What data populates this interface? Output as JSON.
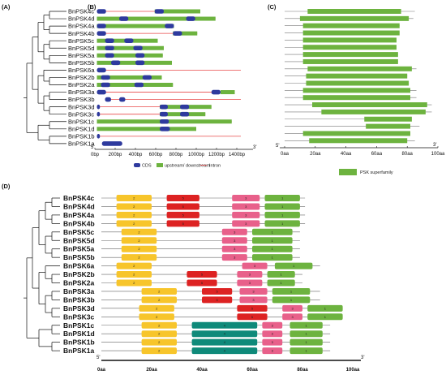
{
  "panels": {
    "a": "(A)",
    "b": "(B)",
    "c": "(C)",
    "d": "(D)"
  },
  "genes": [
    "BnPSK4c",
    "BnPSK4d",
    "BnPSK4a",
    "BnPSK4b",
    "BnPSK5c",
    "BnPSK5d",
    "BnPSK5a",
    "BnPSK5b",
    "BnPSK6a",
    "BnPSK2b",
    "BnPSK2a",
    "BnPSK3a",
    "BnPSK3b",
    "BnPSK3d",
    "BnPSK3c",
    "BnPSK1c",
    "BnPSK1d",
    "BnPSK1b",
    "BnPSK1a"
  ],
  "genes_d": [
    "BnPSK4c",
    "BnPSK4d",
    "BnPSK4a",
    "BnPSK4b",
    "BnPSK5c",
    "BnPSK5d",
    "BnPSK5a",
    "BnPSK5b",
    "BnPSK6a",
    "BnPSK2b",
    "BnPSK2a",
    "BnPSK3a",
    "BnPSK3b",
    "BnPSK3d",
    "BnPSK3c",
    "BnPSK1c",
    "BnPSK1d",
    "BnPSK1b",
    "BnPSK1a"
  ],
  "colors": {
    "cds": "#2e3a9e",
    "utr": "#6db33f",
    "intron": "#e84a4a",
    "psk": "#6db33f",
    "m1": "#6db33f",
    "m2": "#f7c52b",
    "m3": "#e8608a",
    "m4": "#0f8a7a",
    "m5": "#dd2222"
  },
  "panelB": {
    "axis_max_bp": 1400,
    "ticks": [
      0,
      200,
      400,
      600,
      800,
      1000,
      1200,
      1400
    ],
    "tick_labels": [
      "0bp",
      "200bp",
      "400bp",
      "600bp",
      "800bp",
      "1000bp",
      "1200bp",
      "1400bp"
    ],
    "end5": "5'",
    "end3": "3'",
    "legend": {
      "cds": "CDS",
      "utr": "upstream/ downstream",
      "intron": "Intron"
    },
    "structures": [
      {
        "utr": [
          [
            590,
            1040
          ]
        ],
        "cds": [
          [
            20,
            110
          ],
          [
            590,
            680
          ]
        ],
        "intron_to": 590
      },
      {
        "utr": [
          [
            20,
            1190
          ]
        ],
        "cds": [
          [
            240,
            330
          ],
          [
            900,
            990
          ]
        ],
        "intron_to": 0
      },
      {
        "utr": [
          [
            20,
            780
          ]
        ],
        "cds": [
          [
            20,
            110
          ],
          [
            690,
            780
          ]
        ],
        "intron_to": 690
      },
      {
        "utr": [
          [
            770,
            1010
          ]
        ],
        "cds": [
          [
            20,
            110
          ],
          [
            770,
            860
          ]
        ],
        "intron_to": 770
      },
      {
        "utr": [
          [
            20,
            620
          ]
        ],
        "cds": [
          [
            100,
            190
          ],
          [
            290,
            380
          ]
        ],
        "intron_to": 0
      },
      {
        "utr": [
          [
            20,
            680
          ]
        ],
        "cds": [
          [
            100,
            190
          ],
          [
            380,
            470
          ]
        ],
        "intron_to": 0
      },
      {
        "utr": [
          [
            20,
            670
          ]
        ],
        "cds": [
          [
            100,
            190
          ],
          [
            400,
            490
          ]
        ],
        "intron_to": 0
      },
      {
        "utr": [
          [
            20,
            760
          ]
        ],
        "cds": [
          [
            160,
            250
          ],
          [
            400,
            490
          ]
        ],
        "intron_to": 0
      },
      {
        "utr": [
          [],
          []
        ],
        "cds": [
          [
            20,
            110
          ]
        ],
        "intron_to": 1440
      },
      {
        "utr": [
          [
            20,
            660
          ]
        ],
        "cds": [
          [
            60,
            150
          ],
          [
            470,
            560
          ]
        ],
        "intron_to": 0
      },
      {
        "utr": [
          [
            20,
            770
          ]
        ],
        "cds": [
          [
            60,
            150
          ],
          [
            390,
            480
          ]
        ],
        "intron_to": 0
      },
      {
        "utr": [
          [
            1240,
            1380
          ]
        ],
        "cds": [
          [
            20,
            110
          ],
          [
            1150,
            1240
          ]
        ],
        "intron_to": 1150
      },
      {
        "utr": [
          []
        ],
        "cds": [
          [
            100,
            160
          ],
          [
            240,
            300
          ]
        ],
        "intron_to": 1440
      },
      {
        "utr": [
          [
            640,
            1150
          ]
        ],
        "cds": [
          [
            20,
            50
          ],
          [
            640,
            720
          ],
          [
            840,
            930
          ]
        ],
        "intron_to": 640
      },
      {
        "utr": [
          [
            640,
            1090
          ]
        ],
        "cds": [
          [
            20,
            50
          ],
          [
            640,
            720
          ],
          [
            840,
            930
          ]
        ],
        "intron_to": 640
      },
      {
        "utr": [
          [
            20,
            1350
          ]
        ],
        "cds": [
          [
            640,
            730
          ]
        ],
        "intron_to": 0
      },
      {
        "utr": [
          [
            20,
            1000
          ]
        ],
        "cds": [
          [
            640,
            740
          ]
        ],
        "intron_to": 0
      },
      {
        "utr": [
          []
        ],
        "cds": [
          [
            20,
            50
          ]
        ],
        "intron_to": 1440
      },
      {
        "utr": [
          []
        ],
        "cds": [
          [
            70,
            270
          ]
        ],
        "intron_to": 0
      }
    ]
  },
  "panelC": {
    "axis_max_aa": 100,
    "ticks": [
      0,
      20,
      40,
      60,
      80,
      100
    ],
    "tick_labels": [
      "0aa",
      "20aa",
      "40aa",
      "60aa",
      "80aa",
      "100aa"
    ],
    "end5": "5'",
    "end3": "3'",
    "legend": "PSK superfamily",
    "proteins": [
      {
        "len": 85,
        "domain": [
          15,
          76
        ]
      },
      {
        "len": 84,
        "domain": [
          10,
          81
        ]
      },
      {
        "len": 75,
        "domain": [
          12,
          75
        ]
      },
      {
        "len": 75,
        "domain": [
          12,
          75
        ]
      },
      {
        "len": 73,
        "domain": [
          12,
          73
        ]
      },
      {
        "len": 73,
        "domain": [
          12,
          73
        ]
      },
      {
        "len": 74,
        "domain": [
          12,
          74
        ]
      },
      {
        "len": 74,
        "domain": [
          12,
          74
        ]
      },
      {
        "len": 86,
        "domain": [
          15,
          83
        ]
      },
      {
        "len": 80,
        "domain": [
          14,
          80
        ]
      },
      {
        "len": 81,
        "domain": [
          14,
          81
        ]
      },
      {
        "len": 86,
        "domain": [
          12,
          82
        ]
      },
      {
        "len": 86,
        "domain": [
          12,
          82
        ]
      },
      {
        "len": 96,
        "domain": [
          18,
          93
        ]
      },
      {
        "len": 96,
        "domain": [
          24,
          92
        ]
      },
      {
        "len": 83,
        "domain": [
          52,
          83
        ]
      },
      {
        "len": 88,
        "domain": [
          53,
          82
        ]
      },
      {
        "len": 82,
        "domain": [
          12,
          82
        ]
      },
      {
        "len": 85,
        "domain": [
          16,
          80
        ]
      }
    ]
  },
  "panelD": {
    "axis_max_aa": 100,
    "ticks": [
      0,
      20,
      40,
      60,
      80,
      100
    ],
    "tick_labels": [
      "0aa",
      "20aa",
      "40aa",
      "60aa",
      "80aa",
      "100aa"
    ],
    "end5": "5'",
    "end3": "3'",
    "rows": [
      {
        "len": 81,
        "motifs": [
          [
            2,
            6,
            20
          ],
          [
            5,
            26,
            39
          ],
          [
            3,
            52,
            63
          ],
          [
            1,
            65,
            79
          ]
        ]
      },
      {
        "len": 81,
        "motifs": [
          [
            2,
            6,
            20
          ],
          [
            5,
            26,
            39
          ],
          [
            3,
            52,
            63
          ],
          [
            1,
            65,
            79
          ]
        ]
      },
      {
        "len": 81,
        "motifs": [
          [
            2,
            6,
            20
          ],
          [
            5,
            26,
            39
          ],
          [
            3,
            52,
            63
          ],
          [
            1,
            65,
            79
          ]
        ]
      },
      {
        "len": 81,
        "motifs": [
          [
            2,
            6,
            20
          ],
          [
            5,
            26,
            39
          ],
          [
            3,
            52,
            63
          ],
          [
            1,
            65,
            79
          ]
        ]
      },
      {
        "len": 79,
        "motifs": [
          [
            2,
            8,
            22
          ],
          [
            3,
            48,
            58
          ],
          [
            1,
            60,
            76
          ]
        ]
      },
      {
        "len": 79,
        "motifs": [
          [
            2,
            8,
            22
          ],
          [
            3,
            48,
            58
          ],
          [
            1,
            60,
            76
          ]
        ]
      },
      {
        "len": 79,
        "motifs": [
          [
            2,
            8,
            22
          ],
          [
            3,
            48,
            58
          ],
          [
            1,
            60,
            76
          ]
        ]
      },
      {
        "len": 79,
        "motifs": [
          [
            2,
            8,
            22
          ],
          [
            3,
            48,
            58
          ],
          [
            1,
            60,
            76
          ]
        ]
      },
      {
        "len": 87,
        "motifs": [
          [
            2,
            6,
            20
          ],
          [
            3,
            56,
            66
          ],
          [
            1,
            69,
            84
          ]
        ]
      },
      {
        "len": 80,
        "motifs": [
          [
            2,
            6,
            20
          ],
          [
            5,
            34,
            46
          ],
          [
            3,
            54,
            64
          ],
          [
            1,
            66,
            77
          ]
        ]
      },
      {
        "len": 80,
        "motifs": [
          [
            2,
            6,
            20
          ],
          [
            5,
            34,
            46
          ],
          [
            3,
            54,
            64
          ],
          [
            1,
            66,
            77
          ]
        ]
      },
      {
        "len": 87,
        "motifs": [
          [
            2,
            16,
            30
          ],
          [
            5,
            40,
            52
          ],
          [
            3,
            55,
            66
          ],
          [
            1,
            68,
            83
          ]
        ]
      },
      {
        "len": 87,
        "motifs": [
          [
            2,
            16,
            30
          ],
          [
            5,
            40,
            52
          ],
          [
            3,
            55,
            66
          ],
          [
            1,
            68,
            83
          ]
        ]
      },
      {
        "len": 96,
        "motifs": [
          [
            2,
            15,
            29
          ],
          [
            5,
            54,
            66
          ],
          [
            3,
            72,
            80
          ],
          [
            1,
            82,
            96
          ]
        ]
      },
      {
        "len": 96,
        "motifs": [
          [
            2,
            15,
            29
          ],
          [
            5,
            54,
            66
          ],
          [
            3,
            72,
            80
          ],
          [
            1,
            82,
            96
          ]
        ]
      },
      {
        "len": 91,
        "motifs": [
          [
            2,
            16,
            30
          ],
          [
            4,
            36,
            62
          ],
          [
            3,
            64,
            72
          ],
          [
            1,
            75,
            88
          ]
        ]
      },
      {
        "len": 91,
        "motifs": [
          [
            2,
            16,
            30
          ],
          [
            4,
            36,
            62
          ],
          [
            3,
            64,
            72
          ],
          [
            1,
            75,
            88
          ]
        ]
      },
      {
        "len": 91,
        "motifs": [
          [
            2,
            16,
            30
          ],
          [
            4,
            36,
            62
          ],
          [
            3,
            64,
            72
          ],
          [
            1,
            75,
            88
          ]
        ]
      },
      {
        "len": 91,
        "motifs": [
          [
            2,
            16,
            30
          ],
          [
            4,
            36,
            62
          ],
          [
            3,
            64,
            72
          ],
          [
            1,
            75,
            88
          ]
        ]
      }
    ]
  }
}
